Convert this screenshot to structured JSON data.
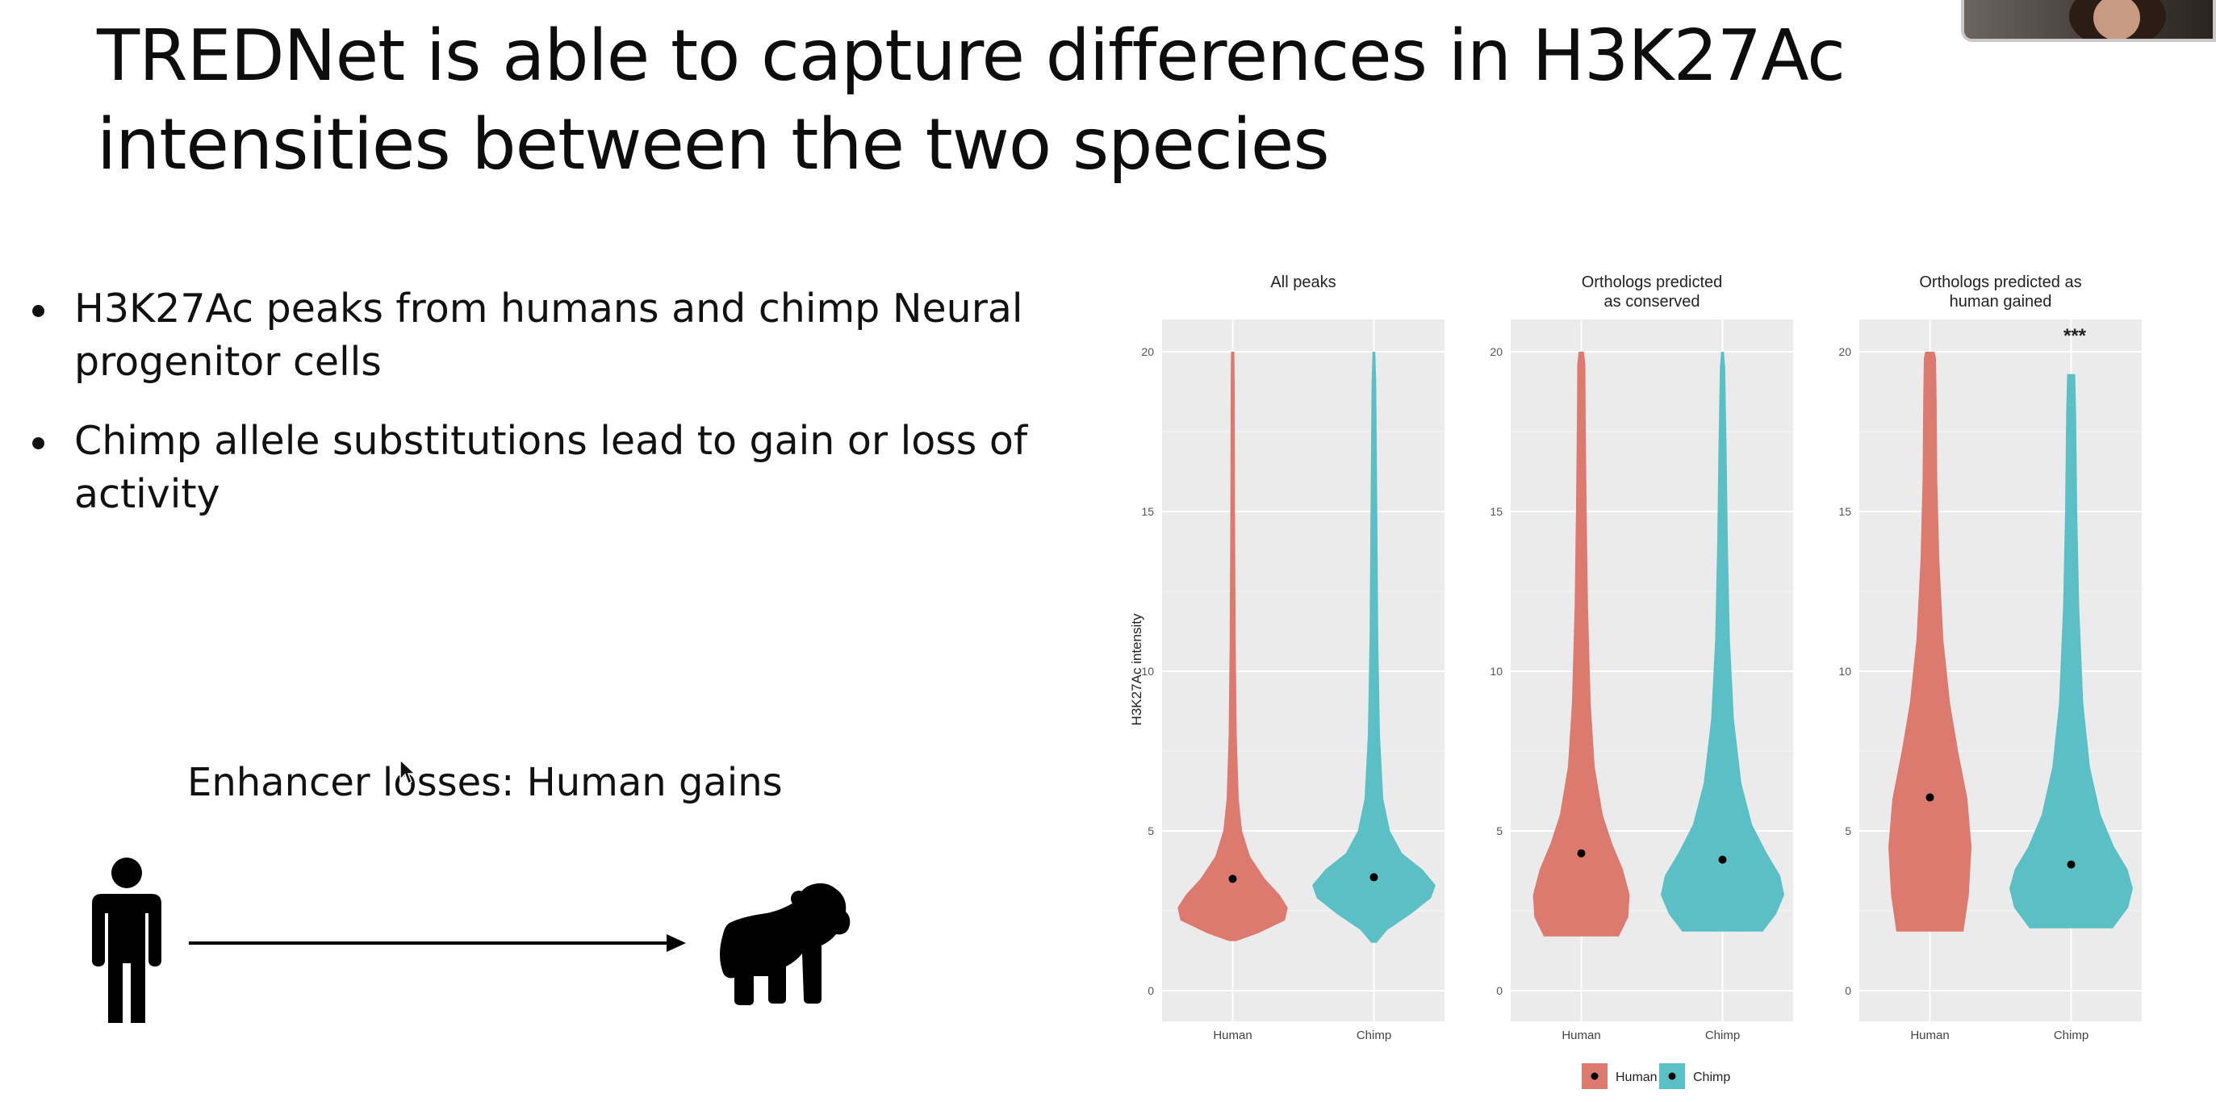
{
  "slide": {
    "title": "TREDNet is able to capture differences in H3K27Ac intensities between the two species",
    "bullets": [
      "H3K27Ac peaks from humans and chimp Neural progenitor cells",
      "Chimp allele substitutions lead to gain or loss of activity"
    ],
    "diagram_label": "Enhancer losses: Human gains",
    "icons": [
      "human-figure-icon",
      "arrow-right-icon",
      "chimp-silhouette-icon",
      "mouse-cursor-icon",
      "webcam-video"
    ]
  },
  "colors": {
    "human": "#DD7A70",
    "chimp": "#5BBFC6",
    "panel_bg": "#EBEBEB",
    "grid": "#FFFFFF"
  },
  "chart_data": {
    "type": "violin",
    "ylabel": "H3K27Ac intensity",
    "ylim": [
      0,
      20
    ],
    "yticks": [
      0,
      5,
      10,
      15,
      20
    ],
    "categories": [
      "Human",
      "Chimp"
    ],
    "legend": {
      "position": "bottom",
      "entries": [
        "Human",
        "Chimp"
      ]
    },
    "panels": [
      {
        "title": "All peaks",
        "annotation": "",
        "groups": [
          {
            "name": "Human",
            "min": 1.55,
            "max": 20,
            "mean": 3.5,
            "profile": [
              [
                1.55,
                0.05
              ],
              [
                1.8,
                0.38
              ],
              [
                2.2,
                0.78
              ],
              [
                2.6,
                0.82
              ],
              [
                3.0,
                0.7
              ],
              [
                3.5,
                0.48
              ],
              [
                4.2,
                0.26
              ],
              [
                5,
                0.14
              ],
              [
                6,
                0.09
              ],
              [
                8,
                0.06
              ],
              [
                11,
                0.045
              ],
              [
                15,
                0.035
              ],
              [
                19,
                0.03
              ],
              [
                20,
                0.025
              ]
            ]
          },
          {
            "name": "Chimp",
            "min": 1.5,
            "max": 20,
            "mean": 3.55,
            "profile": [
              [
                1.5,
                0.04
              ],
              [
                1.9,
                0.2
              ],
              [
                2.4,
                0.55
              ],
              [
                2.9,
                0.85
              ],
              [
                3.3,
                0.92
              ],
              [
                3.8,
                0.72
              ],
              [
                4.3,
                0.42
              ],
              [
                5,
                0.24
              ],
              [
                6,
                0.14
              ],
              [
                8,
                0.09
              ],
              [
                11,
                0.065
              ],
              [
                15,
                0.05
              ],
              [
                19,
                0.035
              ],
              [
                20,
                0.02
              ]
            ]
          }
        ]
      },
      {
        "title": "Orthologs predicted\nas conserved",
        "annotation": "",
        "groups": [
          {
            "name": "Human",
            "min": 1.7,
            "max": 20,
            "mean": 4.3,
            "profile": [
              [
                1.7,
                0.56
              ],
              [
                2.3,
                0.7
              ],
              [
                3,
                0.72
              ],
              [
                3.8,
                0.62
              ],
              [
                4.6,
                0.46
              ],
              [
                5.5,
                0.32
              ],
              [
                7,
                0.2
              ],
              [
                9,
                0.14
              ],
              [
                12,
                0.1
              ],
              [
                15,
                0.08
              ],
              [
                18,
                0.065
              ],
              [
                19.6,
                0.06
              ],
              [
                20,
                0.04
              ]
            ]
          },
          {
            "name": "Chimp",
            "min": 1.85,
            "max": 20,
            "mean": 4.1,
            "profile": [
              [
                1.85,
                0.6
              ],
              [
                2.4,
                0.8
              ],
              [
                3,
                0.92
              ],
              [
                3.6,
                0.86
              ],
              [
                4.3,
                0.66
              ],
              [
                5.2,
                0.44
              ],
              [
                6.5,
                0.28
              ],
              [
                8.5,
                0.17
              ],
              [
                11,
                0.11
              ],
              [
                14,
                0.08
              ],
              [
                17,
                0.06
              ],
              [
                19.5,
                0.04
              ],
              [
                20,
                0.02
              ]
            ]
          }
        ]
      },
      {
        "title": "Orthologs predicted as\nhuman gained",
        "annotation": "***",
        "groups": [
          {
            "name": "Human",
            "min": 1.85,
            "max": 20,
            "mean": 6.05,
            "profile": [
              [
                1.85,
                0.5
              ],
              [
                3,
                0.58
              ],
              [
                4.5,
                0.62
              ],
              [
                6,
                0.56
              ],
              [
                7.5,
                0.42
              ],
              [
                9,
                0.3
              ],
              [
                11,
                0.2
              ],
              [
                13.5,
                0.14
              ],
              [
                16,
                0.11
              ],
              [
                18.5,
                0.1
              ],
              [
                19.8,
                0.09
              ],
              [
                20,
                0.07
              ]
            ]
          },
          {
            "name": "Chimp",
            "min": 1.95,
            "max": 19.3,
            "mean": 3.95,
            "profile": [
              [
                1.95,
                0.62
              ],
              [
                2.6,
                0.85
              ],
              [
                3.2,
                0.92
              ],
              [
                3.8,
                0.84
              ],
              [
                4.5,
                0.64
              ],
              [
                5.5,
                0.44
              ],
              [
                7,
                0.28
              ],
              [
                9,
                0.18
              ],
              [
                12,
                0.12
              ],
              [
                15,
                0.09
              ],
              [
                18,
                0.075
              ],
              [
                19.3,
                0.06
              ]
            ]
          }
        ]
      }
    ]
  }
}
